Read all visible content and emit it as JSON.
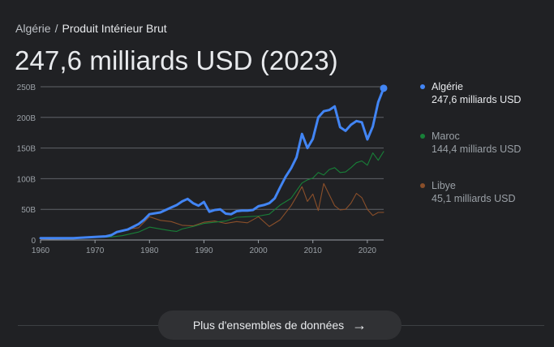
{
  "breadcrumb": {
    "country": "Algérie",
    "separator": "/",
    "indicator": "Produit Intérieur Brut"
  },
  "headline": "247,6 milliards USD (2023)",
  "legend": [
    {
      "name": "Algérie",
      "value": "247,6 milliards USD",
      "color": "#4285f4",
      "active": true
    },
    {
      "name": "Maroc",
      "value": "144,4 milliards USD",
      "color": "#188038",
      "active": false
    },
    {
      "name": "Libye",
      "value": "45,1 milliards USD",
      "color": "#8a4f2a",
      "active": false
    }
  ],
  "more_button": {
    "label": "Plus d'ensembles de données",
    "icon": "arrow-right-icon"
  },
  "chart_data": {
    "type": "line",
    "ylim": [
      0,
      250
    ],
    "yticks": [
      0,
      50,
      100,
      150,
      200,
      250
    ],
    "ytick_labels": [
      "0",
      "50B",
      "100B",
      "150B",
      "200B",
      "250B"
    ],
    "xlim": [
      1960,
      2023
    ],
    "xticks": [
      1960,
      1970,
      1980,
      1990,
      2000,
      2010,
      2020
    ],
    "xtick_labels": [
      "1960",
      "1970",
      "1980",
      "1990",
      "2000",
      "2010",
      "2020"
    ],
    "grid": true,
    "series": [
      {
        "name": "Algérie",
        "color": "#4285f4",
        "x": [
          1960,
          1962,
          1964,
          1966,
          1968,
          1970,
          1972,
          1973,
          1974,
          1976,
          1978,
          1979,
          1980,
          1982,
          1984,
          1985,
          1986,
          1987,
          1988,
          1989,
          1990,
          1991,
          1992,
          1993,
          1994,
          1995,
          1996,
          1997,
          1998,
          1999,
          2000,
          2001,
          2002,
          2003,
          2004,
          2005,
          2006,
          2007,
          2008,
          2009,
          2010,
          2011,
          2012,
          2013,
          2014,
          2015,
          2016,
          2017,
          2018,
          2019,
          2020,
          2021,
          2022,
          2023
        ],
        "values": [
          3,
          3,
          3,
          3,
          4,
          5,
          6,
          8,
          13,
          17,
          26,
          33,
          42,
          45,
          53,
          57,
          63,
          67,
          60,
          56,
          62,
          46,
          49,
          50,
          43,
          42,
          47,
          48,
          48,
          49,
          55,
          57,
          60,
          68,
          86,
          103,
          117,
          135,
          173,
          150,
          165,
          200,
          210,
          212,
          218,
          184,
          178,
          188,
          194,
          192,
          164,
          185,
          225,
          247.6
        ]
      },
      {
        "name": "Maroc",
        "color": "#188038",
        "x": [
          1960,
          1965,
          1970,
          1973,
          1975,
          1978,
          1980,
          1982,
          1984,
          1985,
          1986,
          1988,
          1990,
          1992,
          1994,
          1996,
          1998,
          2000,
          2002,
          2004,
          2006,
          2008,
          2009,
          2010,
          2011,
          2012,
          2013,
          2014,
          2015,
          2016,
          2017,
          2018,
          2019,
          2020,
          2021,
          2022,
          2023
        ],
        "values": [
          2,
          3,
          4,
          5,
          7,
          13,
          21,
          18,
          15,
          14,
          18,
          22,
          27,
          29,
          31,
          37,
          38,
          39,
          42,
          57,
          68,
          93,
          98,
          101,
          110,
          106,
          115,
          118,
          110,
          111,
          118,
          126,
          129,
          122,
          142,
          130,
          144.4
        ]
      },
      {
        "name": "Libye",
        "color": "#8a4f2a",
        "x": [
          1960,
          1965,
          1970,
          1972,
          1974,
          1976,
          1978,
          1980,
          1982,
          1984,
          1986,
          1988,
          1990,
          1992,
          1994,
          1996,
          1998,
          2000,
          2002,
          2004,
          2006,
          2007,
          2008,
          2009,
          2010,
          2011,
          2012,
          2013,
          2014,
          2015,
          2016,
          2017,
          2018,
          2019,
          2020,
          2021,
          2022,
          2023
        ],
        "values": [
          1,
          2,
          4,
          6,
          13,
          18,
          20,
          38,
          32,
          30,
          24,
          23,
          29,
          31,
          27,
          30,
          28,
          38,
          22,
          33,
          56,
          71,
          87,
          63,
          75,
          48,
          92,
          74,
          56,
          49,
          50,
          60,
          76,
          69,
          50,
          40,
          45,
          45.1
        ]
      }
    ]
  }
}
